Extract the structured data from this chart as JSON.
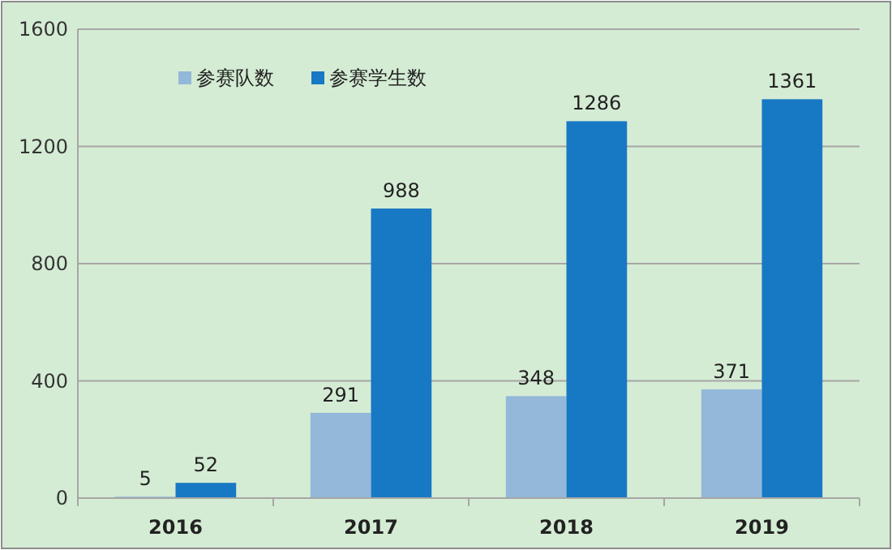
{
  "chart_data": {
    "type": "bar",
    "categories": [
      "2016",
      "2017",
      "2018",
      "2019"
    ],
    "series": [
      {
        "name": "参赛队数",
        "color": "#93b8d9",
        "values": [
          5,
          291,
          348,
          371
        ]
      },
      {
        "name": "参赛学生数",
        "color": "#1778c4",
        "values": [
          52,
          988,
          1286,
          1361
        ]
      }
    ],
    "ylim": [
      0,
      1600
    ],
    "yticks": [
      0,
      400,
      800,
      1200,
      1600
    ],
    "grid": "y",
    "legend": "top left",
    "data_labels": true
  }
}
